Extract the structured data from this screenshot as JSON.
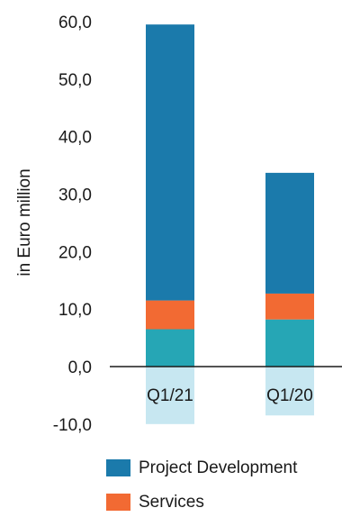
{
  "chart_data": {
    "type": "bar",
    "stacked": true,
    "categories": [
      "Q1/21",
      "Q1/20"
    ],
    "ylabel": "in Euro million",
    "ylim": [
      -10,
      60
    ],
    "yticks": [
      "-10,0",
      "0,0",
      "10,0",
      "20,0",
      "30,0",
      "40,0",
      "50,0",
      "60,0"
    ],
    "series": [
      {
        "values": [
          6.5,
          8.2
        ],
        "color": "#26a6b5"
      },
      {
        "name": "Services",
        "values": [
          5.0,
          4.5
        ],
        "color": "#f26a33"
      },
      {
        "name": "Project Development",
        "values": [
          48.0,
          21.0
        ],
        "color": "#1b7aab"
      },
      {
        "values": [
          -10.0,
          -8.5
        ],
        "color": "#c7e7f1"
      }
    ],
    "legend": [
      {
        "label": "Project Development",
        "color": "#1b7aab"
      },
      {
        "label": "Services",
        "color": "#f26a33"
      }
    ],
    "grid": false,
    "legend_position": "bottom"
  }
}
